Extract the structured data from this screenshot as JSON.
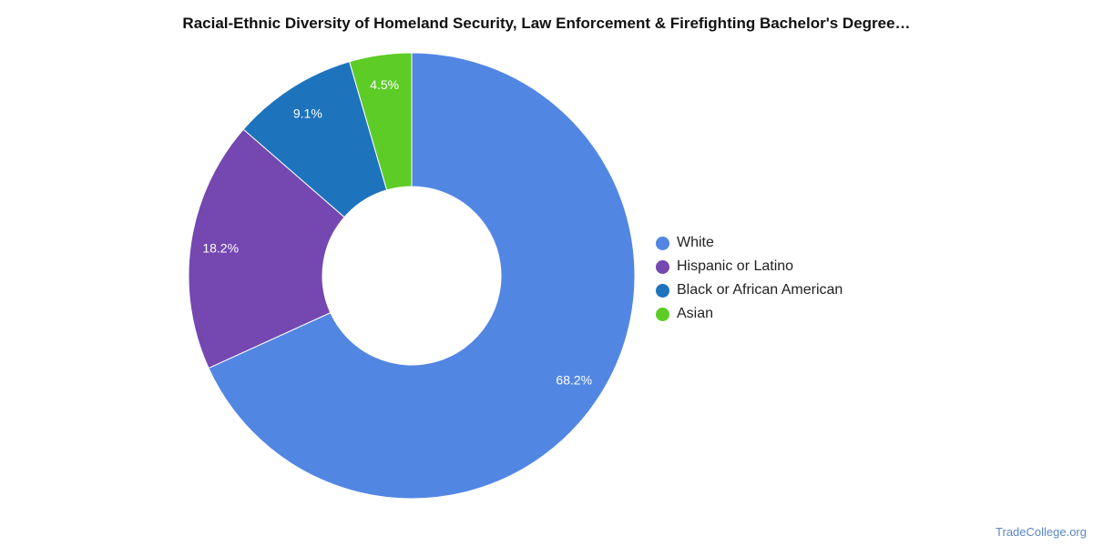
{
  "chart_data": {
    "type": "pie",
    "title": "Racial-Ethnic Diversity of Homeland Security, Law Enforcement & Firefighting Bachelor's Degree…",
    "donut": true,
    "legend_position": "right",
    "slices": [
      {
        "name": "White",
        "value": 68.2,
        "label": "68.2%",
        "color": "#5286e3"
      },
      {
        "name": "Hispanic or Latino",
        "value": 18.2,
        "label": "18.2%",
        "color": "#7547b0"
      },
      {
        "name": "Black or African American",
        "value": 9.1,
        "label": "9.1%",
        "color": "#1e73bd"
      },
      {
        "name": "Asian",
        "value": 4.5,
        "label": "4.5%",
        "color": "#5dcc26"
      }
    ]
  },
  "source": "TradeCollege.org"
}
